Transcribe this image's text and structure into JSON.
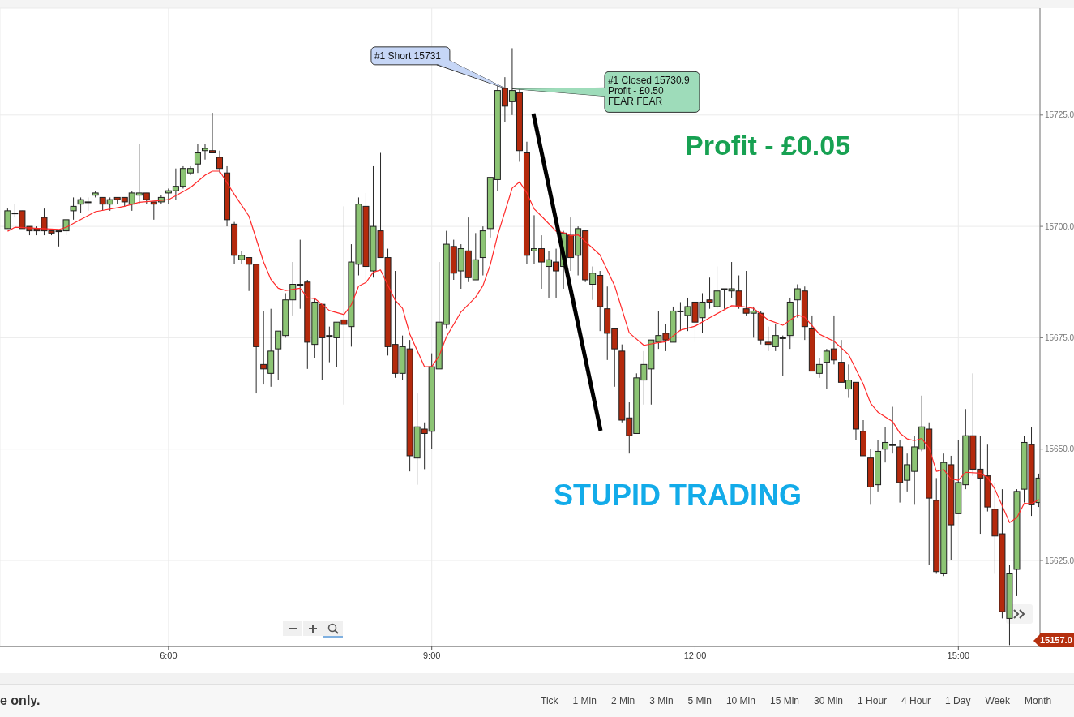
{
  "chart_data": {
    "type": "candlestick",
    "x": [
      4.1667,
      4.25,
      4.3333,
      4.4167,
      4.5,
      4.5833,
      4.6667,
      4.75,
      4.8333,
      4.9167,
      5,
      5.0833,
      5.1667,
      5.25,
      5.3333,
      5.4167,
      5.5,
      5.5833,
      5.6667,
      5.75,
      5.8333,
      5.9167,
      6,
      6.0833,
      6.1667,
      6.25,
      6.3333,
      6.4167,
      6.5,
      6.5833,
      6.6667,
      6.75,
      6.8333,
      6.9167,
      7,
      7.0833,
      7.1667,
      7.25,
      7.3333,
      7.4167,
      7.5,
      7.5833,
      7.6667,
      7.75,
      7.8333,
      7.9167,
      8,
      8.0833,
      8.1667,
      8.25,
      8.3333,
      8.4167,
      8.5,
      8.5833,
      8.6667,
      8.75,
      8.8333,
      8.9167,
      9,
      9.0833,
      9.1667,
      9.25,
      9.3333,
      9.4167,
      9.5,
      9.5833,
      9.6667,
      9.75,
      9.8333,
      9.9167,
      10,
      10.0833,
      10.1667,
      10.25,
      10.3333,
      10.4167,
      10.5,
      10.5833,
      10.6667,
      10.75,
      10.8333,
      10.9167,
      11,
      11.0833,
      11.1667,
      11.25,
      11.3333,
      11.4167,
      11.5,
      11.5833,
      11.6667,
      11.75,
      11.8333,
      11.9167,
      12,
      12.0833,
      12.1667,
      12.25,
      12.3333,
      12.4167,
      12.5,
      12.5833,
      12.6667,
      12.75,
      12.8333,
      12.9167,
      13,
      13.0833,
      13.1667,
      13.25,
      13.3333,
      13.4167,
      13.5,
      13.5833,
      13.6667,
      13.75,
      13.8333,
      13.9167,
      14,
      14.0833,
      14.1667,
      14.25,
      14.3333,
      14.4167,
      14.5,
      14.5833,
      14.6667,
      14.75,
      14.8333,
      14.9167,
      15,
      15.0833,
      15.1667,
      15.25,
      15.3333,
      15.4167,
      15.5,
      15.5833,
      15.6667,
      15.75,
      15.8333,
      15.9167
    ],
    "ohlc": [
      [
        15699.5,
        15704,
        15699.5,
        15703.5
      ],
      [
        15703,
        15705,
        15702,
        15703
      ],
      [
        15703.5,
        15703.5,
        15699.5,
        15699.5
      ],
      [
        15700,
        15700,
        15698,
        15699
      ],
      [
        15699.5,
        15700,
        15698,
        15699
      ],
      [
        15702,
        15704,
        15698,
        15699
      ],
      [
        15699,
        15699,
        15698,
        15698.5
      ],
      [
        15699,
        15699,
        15695.5,
        15699
      ],
      [
        15699,
        15701.5,
        15698,
        15701.5
      ],
      [
        15703.5,
        15706.5,
        15701.5,
        15704.5
      ],
      [
        15705,
        15706.5,
        15703,
        15706
      ],
      [
        15705.5,
        15706.5,
        15703.5,
        15705.5
      ],
      [
        15707,
        15708,
        15706.5,
        15707.5
      ],
      [
        15706.5,
        15706.5,
        15703.5,
        15705
      ],
      [
        15705,
        15706.5,
        15703.5,
        15706
      ],
      [
        15706.5,
        15706.5,
        15705,
        15706
      ],
      [
        15706.5,
        15706.5,
        15704.5,
        15705.5
      ],
      [
        15705,
        15708,
        15703.5,
        15707.5
      ],
      [
        15707,
        15718.5,
        15705,
        15707.5
      ],
      [
        15707.5,
        15707.5,
        15705,
        15706
      ],
      [
        15705.5,
        15705.5,
        15701.5,
        15705
      ],
      [
        15705.5,
        15707,
        15705,
        15706.5
      ],
      [
        15707.5,
        15708.5,
        15705,
        15708
      ],
      [
        15708,
        15713,
        15706,
        15709
      ],
      [
        15709,
        15713.5,
        15708.5,
        15713
      ],
      [
        15712,
        15713.5,
        15711.5,
        15713
      ],
      [
        15714,
        15718.5,
        15712,
        15716.5
      ],
      [
        15717,
        15718.5,
        15715,
        15717.5
      ],
      [
        15717,
        15725.5,
        15716.5,
        15716.5
      ],
      [
        15715.5,
        15717,
        15712,
        15713
      ],
      [
        15712,
        15713.5,
        15700,
        15701.5
      ],
      [
        15700.5,
        15701,
        15691.5,
        15693.5
      ],
      [
        15692.5,
        15694.5,
        15691.5,
        15693.5
      ],
      [
        15693,
        15693,
        15685.5,
        15691.5
      ],
      [
        15691.5,
        15691.5,
        15662.5,
        15673
      ],
      [
        15669,
        15681,
        15664.5,
        15668
      ],
      [
        15667,
        15681.5,
        15664,
        15672
      ],
      [
        15672.5,
        15676.5,
        15665.5,
        15676.5
      ],
      [
        15675.5,
        15685,
        15675,
        15683.5
      ],
      [
        15683.5,
        15692,
        15680,
        15687
      ],
      [
        15687,
        15697,
        15681.5,
        15687
      ],
      [
        15687.5,
        15688,
        15668,
        15674
      ],
      [
        15673.5,
        15684,
        15670.5,
        15683
      ],
      [
        15682.5,
        15682.5,
        15665.5,
        15675
      ],
      [
        15675.5,
        15677.5,
        15669.5,
        15675.5
      ],
      [
        15675,
        15678.5,
        15668.5,
        15678.5
      ],
      [
        15679,
        15704.5,
        15660,
        15678
      ],
      [
        15677.5,
        15696,
        15673,
        15692
      ],
      [
        15691.5,
        15706.5,
        15689,
        15705
      ],
      [
        15704.5,
        15707.5,
        15687.5,
        15691
      ],
      [
        15690,
        15713.5,
        15688.5,
        15700
      ],
      [
        15699,
        15716.5,
        15693,
        15693
      ],
      [
        15693,
        15695,
        15671,
        15673
      ],
      [
        15673.5,
        15690,
        15666,
        15667
      ],
      [
        15667,
        15675.5,
        15665.5,
        15673
      ],
      [
        15672.5,
        15674.5,
        15645,
        15648.5
      ],
      [
        15648,
        15662.5,
        15642,
        15655
      ],
      [
        15654.5,
        15656,
        15645.5,
        15653.5
      ],
      [
        15654,
        15671.5,
        15650,
        15668.5
      ],
      [
        15668,
        15692,
        15668,
        15678.5
      ],
      [
        15678,
        15699,
        15677,
        15696
      ],
      [
        15695.5,
        15697,
        15688,
        15689.5
      ],
      [
        15690,
        15696,
        15686,
        15695
      ],
      [
        15694.5,
        15702,
        15687.5,
        15688.5
      ],
      [
        15688,
        15698.5,
        15688,
        15692.5
      ],
      [
        15693,
        15700,
        15689,
        15699
      ],
      [
        15699.5,
        15711,
        15697.5,
        15711
      ],
      [
        15710.5,
        15732,
        15708,
        15730.5
      ],
      [
        15731,
        15733.5,
        15723.5,
        15727
      ],
      [
        15728,
        15740,
        15725,
        15730.5
      ],
      [
        15730,
        15731,
        15714.5,
        15717
      ],
      [
        15716.5,
        15719,
        15691.5,
        15693.5
      ],
      [
        15694.5,
        15702.5,
        15691.5,
        15695
      ],
      [
        15695,
        15698,
        15686,
        15692
      ],
      [
        15691,
        15694.5,
        15684,
        15692.5
      ],
      [
        15692,
        15695,
        15684,
        15690
      ],
      [
        15691,
        15699,
        15686,
        15698.5
      ],
      [
        15698,
        15702,
        15690,
        15693
      ],
      [
        15693.5,
        15700,
        15689,
        15699.5
      ],
      [
        15699,
        15699,
        15687.5,
        15688
      ],
      [
        15687,
        15691,
        15683.5,
        15689.5
      ],
      [
        15689,
        15690,
        15676.5,
        15682
      ],
      [
        15681.5,
        15686.5,
        15670,
        15676
      ],
      [
        15677,
        15677,
        15664,
        15672.5
      ],
      [
        15672,
        15673.5,
        15656,
        15656.5
      ],
      [
        15657,
        15660.5,
        15649,
        15653
      ],
      [
        15653.5,
        15667,
        15653.5,
        15666
      ],
      [
        15665.5,
        15672,
        15660,
        15669
      ],
      [
        15668,
        15674.5,
        15660,
        15674.5
      ],
      [
        15674,
        15681,
        15672.5,
        15675.5
      ],
      [
        15676,
        15678,
        15672,
        15674.5
      ],
      [
        15674,
        15682,
        15674,
        15681
      ],
      [
        15681,
        15683,
        15676.5,
        15681
      ],
      [
        15680,
        15684,
        15676.5,
        15682
      ],
      [
        15683,
        15683,
        15674,
        15678.5
      ],
      [
        15679.5,
        15685,
        15676,
        15683
      ],
      [
        15683.5,
        15688.5,
        15681.5,
        15683
      ],
      [
        15682,
        15691,
        15681.5,
        15685.5
      ],
      [
        15686,
        15686,
        15681.5,
        15686
      ],
      [
        15685.5,
        15692,
        15684,
        15686
      ],
      [
        15685.5,
        15689,
        15681.5,
        15682
      ],
      [
        15681.5,
        15690,
        15680,
        15680.5
      ],
      [
        15680.5,
        15682,
        15675,
        15681
      ],
      [
        15680.5,
        15681,
        15673.5,
        15674.5
      ],
      [
        15674,
        15677.5,
        15672,
        15673.5
      ],
      [
        15673,
        15678,
        15672,
        15675.5
      ],
      [
        15675,
        15675.5,
        15666.5,
        15675
      ],
      [
        15675.5,
        15684,
        15672.5,
        15683
      ],
      [
        15683.5,
        15687,
        15679.5,
        15686
      ],
      [
        15685.5,
        15686.5,
        15674.5,
        15677.5
      ],
      [
        15677,
        15680,
        15667.5,
        15667.5
      ],
      [
        15667,
        15670.5,
        15666,
        15669
      ],
      [
        15669.5,
        15672.5,
        15663.5,
        15672
      ],
      [
        15672.5,
        15680,
        15669,
        15670
      ],
      [
        15669.5,
        15674.5,
        15665,
        15665
      ],
      [
        15663.5,
        15669,
        15661.5,
        15665.5
      ],
      [
        15665,
        15665,
        15652,
        15654.5
      ],
      [
        15654,
        15656.5,
        15648.5,
        15648.5
      ],
      [
        15648,
        15650,
        15637.5,
        15641.5
      ],
      [
        15642,
        15652,
        15640.5,
        15649.5
      ],
      [
        15650,
        15655,
        15647,
        15651.5
      ],
      [
        15651,
        15659.5,
        15649,
        15651
      ],
      [
        15650.5,
        15652,
        15638,
        15642.5
      ],
      [
        15643,
        15649,
        15640.5,
        15646.5
      ],
      [
        15645,
        15653,
        15637.5,
        15650.5
      ],
      [
        15650,
        15662,
        15649.5,
        15655
      ],
      [
        15654.5,
        15656,
        15624,
        15639
      ],
      [
        15638.5,
        15643.5,
        15622,
        15622.5
      ],
      [
        15622,
        15649,
        15621.5,
        15647
      ],
      [
        15646.5,
        15648.5,
        15625,
        15633
      ],
      [
        15635.5,
        15652,
        15635.5,
        15642.5
      ],
      [
        15642,
        15659,
        15641,
        15653
      ],
      [
        15653,
        15667,
        15644,
        15645.5
      ],
      [
        15645.5,
        15653,
        15631,
        15643.5
      ],
      [
        15644,
        15651,
        15636,
        15637
      ],
      [
        15636.5,
        15642.5,
        15622,
        15630.5
      ],
      [
        15631,
        15641,
        15612,
        15613.5
      ],
      [
        15612,
        15624,
        15606,
        15622
      ],
      [
        15623,
        15641,
        15617,
        15640.5
      ],
      [
        15641,
        15653,
        15638,
        15651.5
      ],
      [
        15651,
        15655,
        15635,
        15637.5
      ],
      [
        15638,
        15644.5,
        15637,
        15643.5
      ]
    ],
    "colors": [
      "#8cc474",
      "#8cc474",
      "#b4290c",
      "#b4290c",
      "#b4290c",
      "#b4290c",
      "#b4290c",
      "#8cc474",
      "#8cc474",
      "#8cc474",
      "#8cc474",
      "#8cc474",
      "#8cc474",
      "#b4290c",
      "#8cc474",
      "#b4290c",
      "#b4290c",
      "#8cc474",
      "#8cc474",
      "#b4290c",
      "#b4290c",
      "#8cc474",
      "#8cc474",
      "#8cc474",
      "#8cc474",
      "#8cc474",
      "#8cc474",
      "#8cc474",
      "#b4290c",
      "#b4290c",
      "#b4290c",
      "#b4290c",
      "#8cc474",
      "#b4290c",
      "#b4290c",
      "#b4290c",
      "#8cc474",
      "#8cc474",
      "#8cc474",
      "#8cc474",
      "#8cc474",
      "#b4290c",
      "#8cc474",
      "#b4290c",
      "#8cc474",
      "#8cc474",
      "#b4290c",
      "#8cc474",
      "#8cc474",
      "#b4290c",
      "#8cc474",
      "#b4290c",
      "#b4290c",
      "#b4290c",
      "#8cc474",
      "#b4290c",
      "#8cc474",
      "#b4290c",
      "#8cc474",
      "#8cc474",
      "#8cc474",
      "#b4290c",
      "#8cc474",
      "#b4290c",
      "#8cc474",
      "#8cc474",
      "#8cc474",
      "#8cc474",
      "#b4290c",
      "#8cc474",
      "#b4290c",
      "#b4290c",
      "#8cc474",
      "#b4290c",
      "#8cc474",
      "#b4290c",
      "#8cc474",
      "#b4290c",
      "#8cc474",
      "#b4290c",
      "#8cc474",
      "#b4290c",
      "#b4290c",
      "#b4290c",
      "#b4290c",
      "#b4290c",
      "#8cc474",
      "#8cc474",
      "#8cc474",
      "#8cc474",
      "#b4290c",
      "#8cc474",
      "#8cc474",
      "#8cc474",
      "#b4290c",
      "#8cc474",
      "#b4290c",
      "#8cc474",
      "#8cc474",
      "#8cc474",
      "#b4290c",
      "#b4290c",
      "#8cc474",
      "#b4290c",
      "#b4290c",
      "#8cc474",
      "#8cc474",
      "#8cc474",
      "#8cc474",
      "#b4290c",
      "#b4290c",
      "#8cc474",
      "#8cc474",
      "#b4290c",
      "#b4290c",
      "#8cc474",
      "#b4290c",
      "#b4290c",
      "#b4290c",
      "#8cc474",
      "#8cc474",
      "#8cc474",
      "#b4290c",
      "#8cc474",
      "#8cc474",
      "#8cc474",
      "#b4290c",
      "#b4290c",
      "#8cc474",
      "#b4290c",
      "#8cc474",
      "#8cc474",
      "#b4290c",
      "#b4290c",
      "#b4290c",
      "#b4290c",
      "#b4290c",
      "#8cc474",
      "#8cc474",
      "#8cc474",
      "#b4290c",
      "#8cc474"
    ],
    "series": [
      {
        "type": "line",
        "color": "#ff2a2a",
        "x": [
          4.1667,
          4.25,
          4.75,
          4.8333,
          5.1667,
          5.4167,
          5.5,
          5.6667,
          5.8333,
          6,
          6.25,
          6.4167,
          6.5,
          6.5833,
          6.75,
          6.9167,
          7.0833,
          7.1667,
          7.25,
          7.3333,
          7.5,
          7.5833,
          7.6667,
          7.8333,
          8,
          8.0833,
          8.1667,
          8.25,
          8.3333,
          8.4167,
          8.5833,
          8.6667,
          8.75,
          8.9167,
          9,
          9.0833,
          9.1667,
          9.3333,
          9.5,
          9.5833,
          9.6667,
          9.75,
          9.9167,
          10,
          10.0833,
          10.1667,
          10.25,
          10.4167,
          10.5,
          10.5833,
          10.6667,
          10.8333,
          10.9167,
          11.0833,
          11.25,
          11.4167,
          11.5833,
          11.6667,
          11.8333,
          12,
          12.1667,
          12.4167,
          12.5,
          12.6667,
          12.8333,
          13,
          13.1667,
          13.25,
          13.4167,
          13.5833,
          13.75,
          13.9167,
          14,
          14.0833,
          14.25,
          14.3333,
          14.4167,
          14.5,
          14.5833,
          14.6667,
          14.75,
          14.8333,
          14.9167,
          15,
          15.0833,
          15.25,
          15.3333,
          15.4167,
          15.5833,
          15.6667,
          15.75,
          15.8333,
          15.9167
        ],
        "values": [
          15698.9,
          15699.8,
          15699.3,
          15699.8,
          15703.3,
          15704.2,
          15704.5,
          15705.4,
          15705.7,
          15706,
          15708.7,
          15711.5,
          15712.4,
          15712.4,
          15707.2,
          15702.3,
          15692,
          15688.1,
          15686.1,
          15685.6,
          15686.1,
          15684,
          15683.8,
          15681.1,
          15680.2,
          15682.4,
          15686.6,
          15687.4,
          15689.7,
          15690.2,
          15683.4,
          15681.6,
          15675.8,
          15668.5,
          15668.5,
          15670.9,
          15675.2,
          15680.8,
          15684.1,
          15686.7,
          15691.4,
          15698,
          15708.6,
          15710,
          15707.5,
          15703.9,
          15702.3,
          15698.9,
          15698.6,
          15697.9,
          15698.1,
          15695.1,
          15693.6,
          15686.7,
          15676.1,
          15673.3,
          15673.9,
          15674.1,
          15676.7,
          15677.6,
          15679.5,
          15682.2,
          15682.1,
          15681.6,
          15679,
          15677.8,
          15680.1,
          15679.6,
          15675.8,
          15674.2,
          15671.2,
          15664.6,
          15660.3,
          15658.3,
          15656.2,
          15653.6,
          15652.3,
          15651.9,
          15652.4,
          15650.3,
          15645,
          15645.4,
          15643.3,
          15643,
          15644.8,
          15644.6,
          15643.6,
          15641,
          15633.5,
          15634.6,
          15637.8,
          15637.7,
          15638.7
        ]
      }
    ],
    "xlim": [
      4.08,
      15.93
    ],
    "xticks": [
      {
        "value": 6,
        "label": "6:00"
      },
      {
        "value": 9,
        "label": "9:00"
      },
      {
        "value": 12,
        "label": "12:00"
      },
      {
        "value": 15,
        "label": "15:00"
      }
    ],
    "ylim": [
      15605.7,
      15749
    ],
    "yticks": [
      {
        "value": 15625,
        "label": "15625.0"
      },
      {
        "value": 15650,
        "label": "15650.0"
      },
      {
        "value": 15675,
        "label": "15675.0"
      },
      {
        "value": 15700,
        "label": "15700.0"
      },
      {
        "value": 15725,
        "label": "15725.0"
      }
    ],
    "grid": true,
    "annotations": [
      {
        "text": "#1 Short 15731",
        "x": 9.8333,
        "y": 15731
      },
      {
        "text": "#1 Closed 15730.9\nProfit - £0.50\nFEAR FEAR",
        "x": 9.9167,
        "y": 15730.9
      },
      "Profit - £0.05",
      "STUPID TRADING",
      "15157.0",
      "e only.",
      "Tick",
      "1 Min",
      "2 Min",
      "3 Min",
      "5 Min",
      "10 Min",
      "15 Min",
      "30 Min",
      "1 Hour",
      "4 Hour",
      "1 Day",
      "Week",
      "Month"
    ]
  }
}
